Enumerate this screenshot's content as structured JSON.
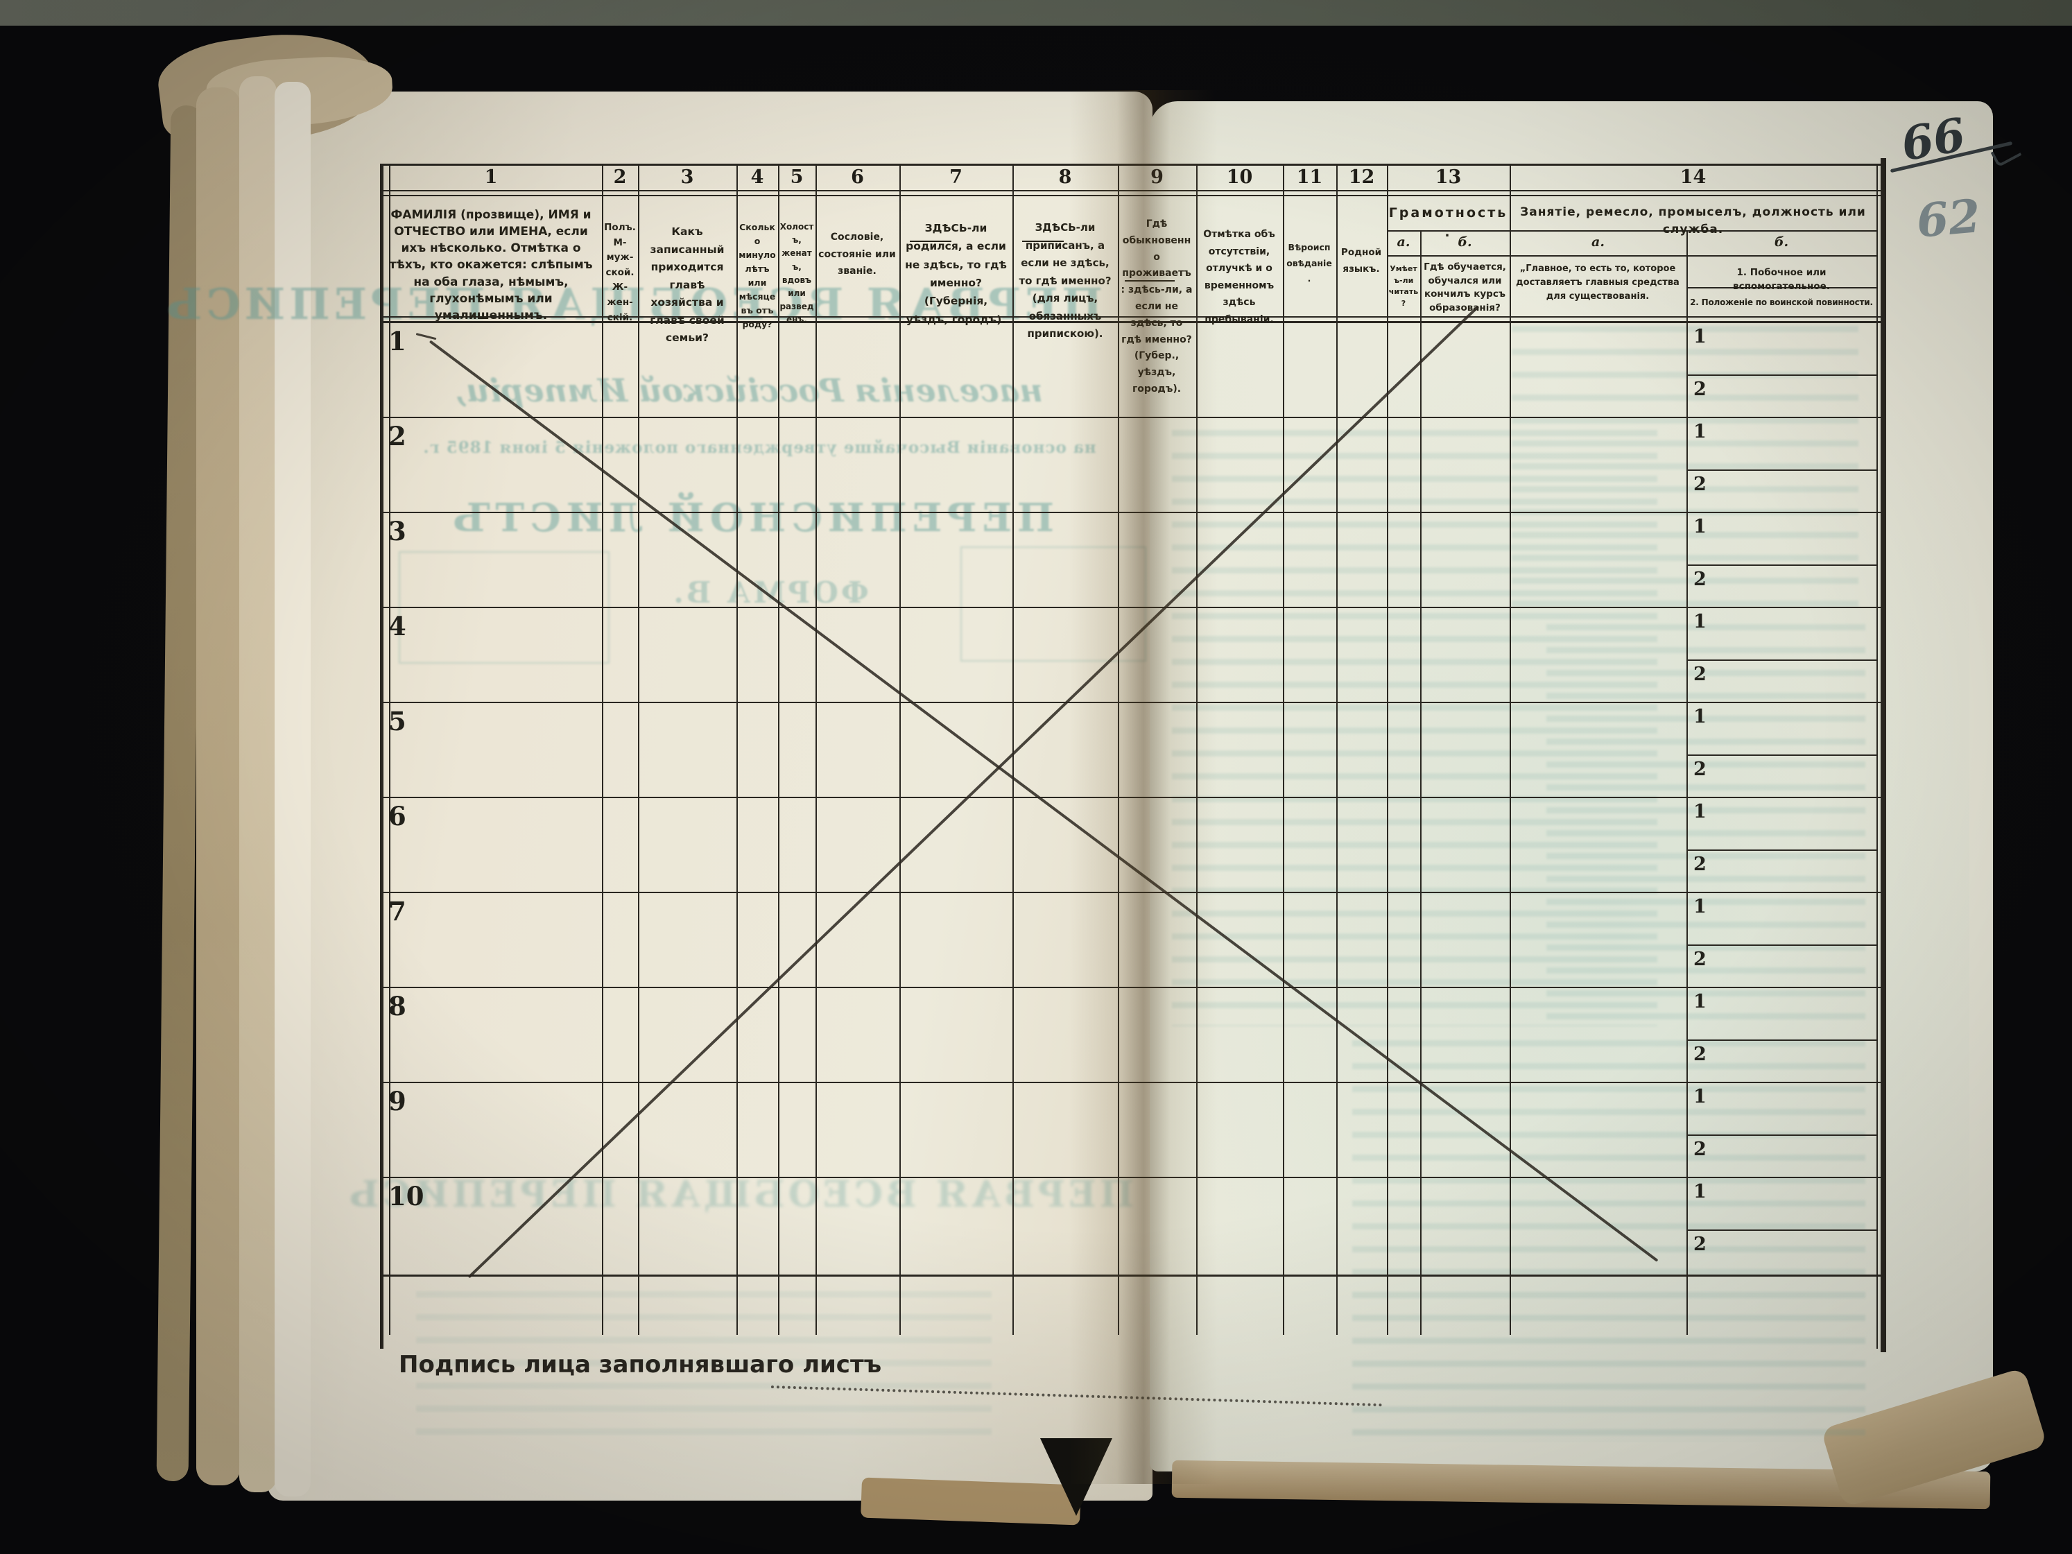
{
  "annotations": {
    "folio_crossed_out": "66",
    "folio_current": "62"
  },
  "footer": {
    "signature_label": "Подпись лица заполнявшаго листъ"
  },
  "rows": {
    "numbers": [
      "1",
      "2",
      "3",
      "4",
      "5",
      "6",
      "7",
      "8",
      "9",
      "10"
    ],
    "sub_first": "1",
    "sub_second": "2"
  },
  "table": {
    "columns": [
      {
        "num": "1",
        "header": "ФАМИЛІЯ (прозвище), ИМЯ и ОТЧЕСТВО или ИМЕНА, если ихъ нѣсколько. Отмѣтка о тѣхъ, кто окажется: слѣпымъ на оба глаза, нѣмымъ, глухонѣмымъ или умалишеннымъ."
      },
      {
        "num": "2",
        "header": "Полъ. М-муж-ской. Ж-жен-скій."
      },
      {
        "num": "3",
        "header": "Какъ записанный приходится главѣ хозяйства и главѣ своей семьи?"
      },
      {
        "num": "4",
        "header": "Сколько минуло лѣтъ или мѣсяцевъ отъ роду?"
      },
      {
        "num": "5",
        "header": "Холостъ, женатъ, вдовъ или разведенъ."
      },
      {
        "num": "6",
        "header": "Сословіе, состояніе или званіе."
      },
      {
        "num": "7",
        "header": "ЗДѢСЬ-ли родился, а если не здѣсь, то гдѣ именно? (Губернія, уѣздъ, городъ)."
      },
      {
        "num": "8",
        "header": "ЗДѢСЬ-ли приписанъ, а если не здѣсь, то гдѣ именно? (для лицъ, обязанныхъ припискою)."
      },
      {
        "num": "9",
        "header": "Гдѣ обыкновенно проживаетъ: здѣсь-ли, а если не здѣсь, то гдѣ именно? (Губер., уѣздъ, городъ)."
      },
      {
        "num": "10",
        "header": "Отмѣтка объ отсутствіи, отлучкѣ и о временномъ здѣсь пребываніи."
      },
      {
        "num": "11",
        "header": "Вѣроисповѣданіе."
      },
      {
        "num": "12",
        "header": "Родной языкъ."
      },
      {
        "num": "13",
        "title": "Грамотность.",
        "a_label": "а.",
        "b_label": "б.",
        "a_text": "Умѣетъ-ли читать?",
        "b_text": "Гдѣ обучается, обучался или кончилъ курсъ образованія?"
      },
      {
        "num": "14",
        "title": "Занятіе, ремесло, промыселъ, должность или служба.",
        "a_label": "а.",
        "b_label": "б.",
        "a_text": "„Главное, то есть то, которое доставляетъ главныя средства для существованія.",
        "b1_text": "1. Побочное или вспомогательное.",
        "b2_text": "2. Положеніе по воинской повинности."
      }
    ]
  },
  "bleedthrough": {
    "title": "ПЕРВАЯ ВСЕОБЩАЯ ПЕРЕПИСЬ",
    "subtitle": "населенія Россійской Имперіи,",
    "law_line": "на основаніи Высочайше утвержденнаго положенія 5 іюня 1895 г.",
    "sheet_title": "ПЕРЕПИСНОЙ ЛИСТЪ",
    "form": "ФОРМА В.",
    "bottom_title": "ПЕРВАЯ ВСЕОБЩАЯ ПЕРЕПИСЬ"
  }
}
